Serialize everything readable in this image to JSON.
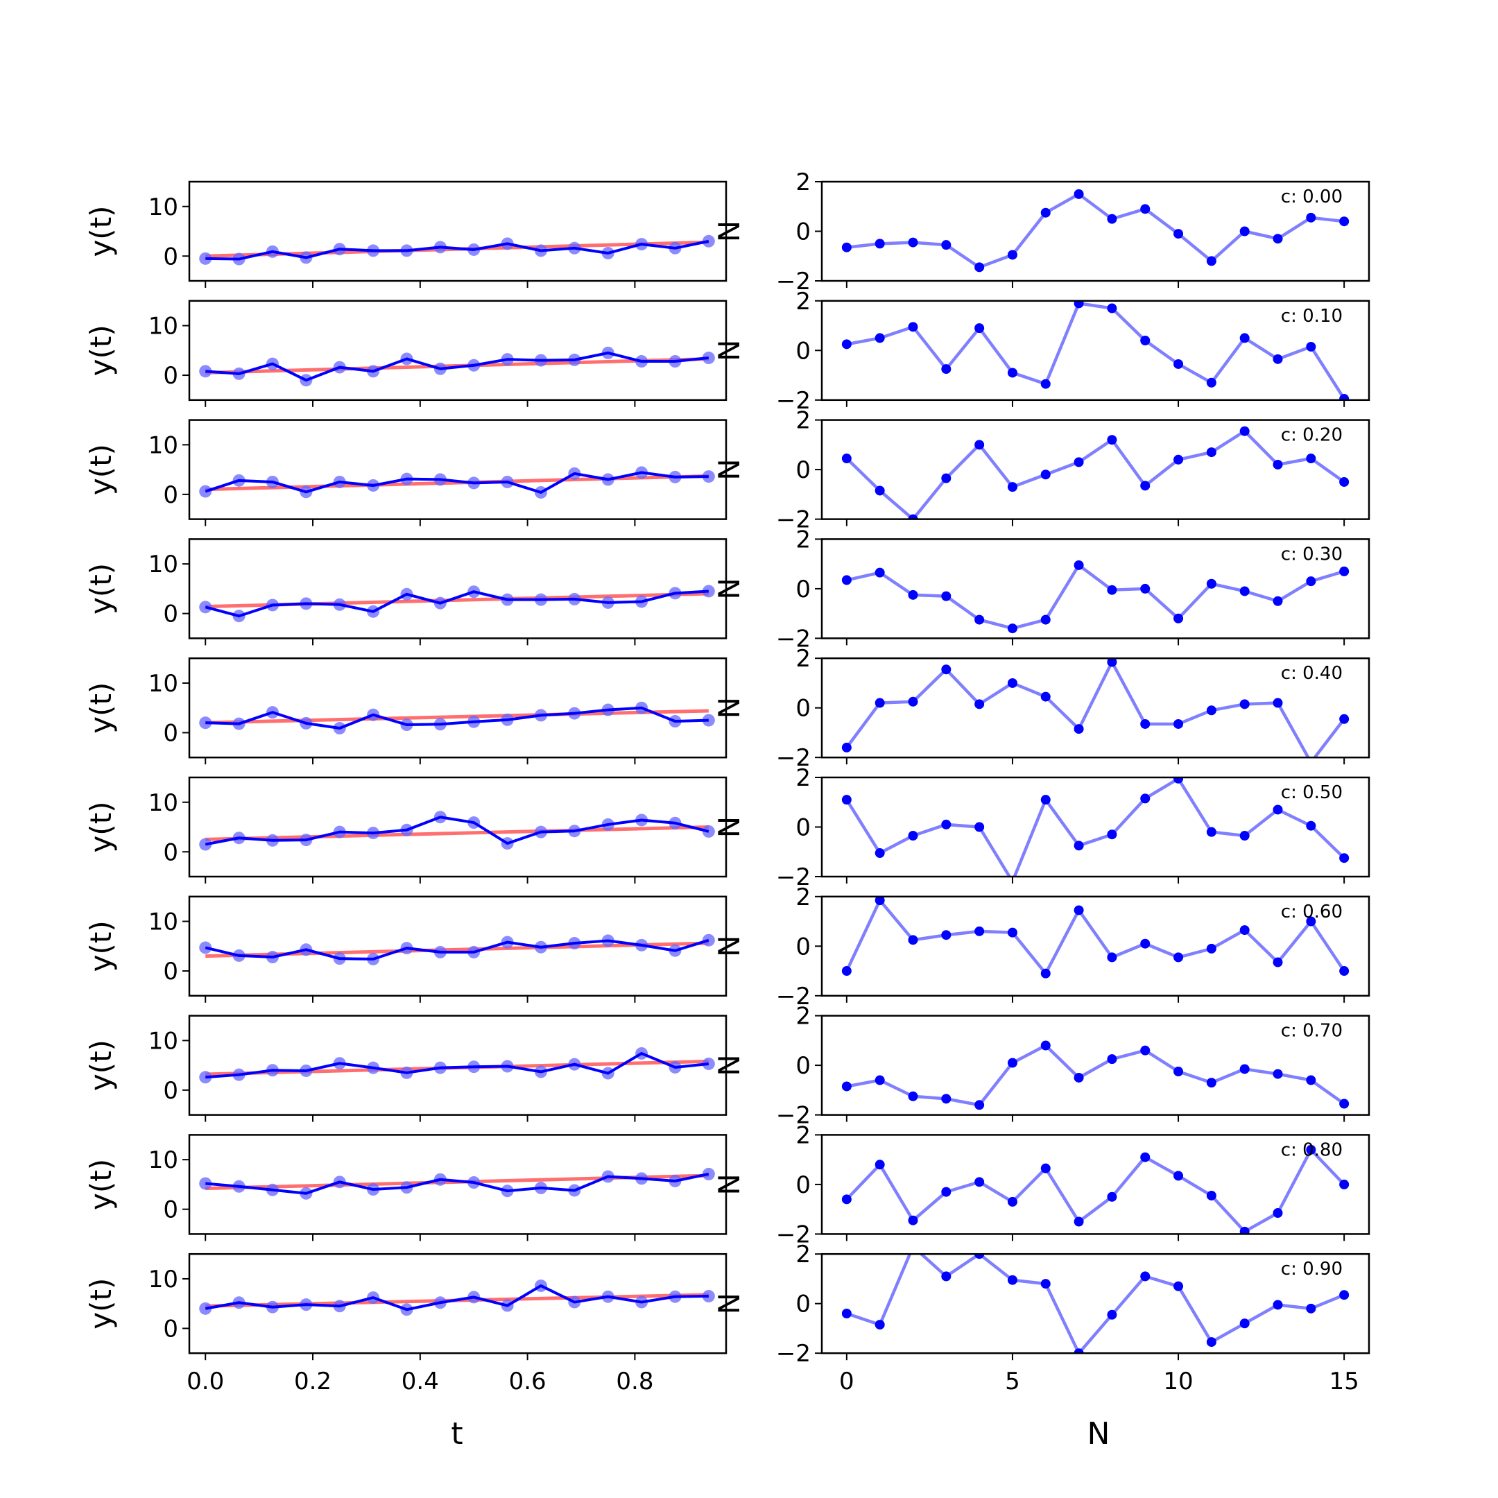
{
  "chart_data": {
    "type": "line",
    "layout": "10 rows x 2 columns of subplots",
    "colors": {
      "observed": "#0000ff",
      "observed_marker": "#6464ff",
      "trend": "#ff6f6f",
      "noise": "#7f7fff",
      "noise_marker": "#0000ff"
    },
    "left_column": {
      "xlabel": "t",
      "ylabel": "y(t)",
      "xlim": [
        -0.03,
        0.97
      ],
      "ylim": [
        -5,
        15
      ],
      "xticks": [
        0.0,
        0.2,
        0.4,
        0.6,
        0.8
      ],
      "xtick_labels": [
        "0.0",
        "0.2",
        "0.4",
        "0.6",
        "0.8"
      ],
      "yticks": [
        0,
        10
      ],
      "ytick_labels": [
        "0",
        "10"
      ],
      "x": [
        0.0,
        0.0625,
        0.125,
        0.1875,
        0.25,
        0.3125,
        0.375,
        0.4375,
        0.5,
        0.5625,
        0.625,
        0.6875,
        0.75,
        0.8125,
        0.875,
        0.9375
      ]
    },
    "right_column": {
      "xlabel": "N",
      "ylabel": "N",
      "xlim": [
        -0.75,
        15.75
      ],
      "ylim": [
        -2,
        2
      ],
      "xticks": [
        0,
        5,
        10,
        15
      ],
      "xtick_labels": [
        "0",
        "5",
        "10",
        "15"
      ],
      "yticks": [
        -2,
        0,
        2
      ],
      "ytick_labels": [
        "−2",
        "0",
        "2"
      ],
      "x": [
        0,
        1,
        2,
        3,
        4,
        5,
        6,
        7,
        8,
        9,
        10,
        11,
        12,
        13,
        14,
        15
      ]
    },
    "rows": [
      {
        "annotation": "c: 0.00",
        "observed": [
          -0.5,
          -0.6,
          0.9,
          -0.3,
          1.4,
          1.1,
          1.1,
          1.8,
          1.3,
          2.5,
          1.1,
          1.6,
          0.6,
          2.4,
          1.6,
          3.0
        ],
        "trend": [
          0.0,
          2.8
        ],
        "noise": [
          -0.65,
          -0.5,
          -0.45,
          -0.55,
          -1.45,
          -0.95,
          0.75,
          1.5,
          0.5,
          0.9,
          -0.1,
          -1.2,
          0.0,
          -0.3,
          0.55,
          0.4
        ]
      },
      {
        "annotation": "c: 0.10",
        "observed": [
          0.8,
          0.3,
          2.3,
          -1.0,
          1.6,
          0.8,
          3.3,
          1.3,
          2.0,
          3.2,
          3.0,
          3.1,
          4.5,
          2.8,
          2.8,
          3.5
        ],
        "trend": [
          0.5,
          3.3
        ],
        "noise": [
          0.25,
          0.5,
          0.95,
          -0.75,
          0.9,
          -0.9,
          -1.35,
          1.9,
          1.7,
          0.4,
          -0.55,
          -1.3,
          0.5,
          -0.35,
          0.15,
          -1.95
        ]
      },
      {
        "annotation": "c: 0.20",
        "observed": [
          0.6,
          2.8,
          2.5,
          0.5,
          2.5,
          1.8,
          3.1,
          3.0,
          2.3,
          2.5,
          0.4,
          4.2,
          3.0,
          4.4,
          3.5,
          3.6
        ],
        "trend": [
          1.0,
          3.7
        ],
        "noise": [
          0.45,
          -0.85,
          -2.0,
          -0.35,
          1.0,
          -0.7,
          -0.2,
          0.3,
          1.2,
          -0.65,
          0.4,
          0.7,
          1.55,
          0.2,
          0.45,
          -0.5
        ]
      },
      {
        "annotation": "c: 0.30",
        "observed": [
          1.3,
          -0.5,
          1.7,
          2.0,
          1.8,
          0.4,
          3.9,
          2.1,
          4.4,
          2.8,
          2.8,
          2.9,
          2.2,
          2.4,
          4.1,
          4.5
        ],
        "trend": [
          1.4,
          4.0
        ],
        "noise": [
          0.35,
          0.65,
          -0.25,
          -0.3,
          -1.25,
          -1.6,
          -1.25,
          0.95,
          -0.05,
          0.0,
          -1.2,
          0.2,
          -0.1,
          -0.5,
          0.3,
          0.7
        ]
      },
      {
        "annotation": "c: 0.40",
        "observed": [
          2.0,
          1.8,
          4.1,
          1.9,
          0.9,
          3.6,
          1.6,
          1.7,
          2.2,
          2.6,
          3.5,
          3.9,
          4.6,
          5.0,
          2.3,
          2.5
        ],
        "trend": [
          2.0,
          4.4
        ],
        "noise": [
          -1.6,
          0.2,
          0.25,
          1.55,
          0.15,
          1.0,
          0.45,
          -0.85,
          1.85,
          -0.65,
          -0.65,
          -0.1,
          0.15,
          0.2,
          -2.2,
          -0.45
        ]
      },
      {
        "annotation": "c: 0.50",
        "observed": [
          1.5,
          2.8,
          2.3,
          2.4,
          4.0,
          3.8,
          4.4,
          7.0,
          5.9,
          1.7,
          4.0,
          4.2,
          5.5,
          6.4,
          5.8,
          4.1
        ],
        "trend": [
          2.5,
          5.0
        ],
        "noise": [
          1.1,
          -1.05,
          -0.35,
          0.1,
          0.0,
          -2.2,
          1.1,
          -0.75,
          -0.3,
          1.15,
          1.95,
          -0.2,
          -0.35,
          0.7,
          0.05,
          -1.25
        ]
      },
      {
        "annotation": "c: 0.60",
        "observed": [
          4.7,
          3.1,
          2.8,
          4.3,
          2.5,
          2.4,
          4.6,
          3.8,
          3.8,
          5.8,
          4.8,
          5.6,
          6.1,
          5.2,
          4.1,
          6.2
        ],
        "trend": [
          3.0,
          5.6
        ],
        "noise": [
          -1.0,
          1.85,
          0.25,
          0.45,
          0.6,
          0.55,
          -1.1,
          1.45,
          -0.45,
          0.1,
          -0.45,
          -0.1,
          0.65,
          -0.65,
          1.0,
          -1.0
        ]
      },
      {
        "annotation": "c: 0.70",
        "observed": [
          2.6,
          3.1,
          4.0,
          3.9,
          5.4,
          4.5,
          3.5,
          4.5,
          4.7,
          4.8,
          3.7,
          5.2,
          3.4,
          7.4,
          4.6,
          5.3
        ],
        "trend": [
          3.2,
          5.8
        ],
        "noise": [
          -0.85,
          -0.6,
          -1.25,
          -1.35,
          -1.6,
          0.1,
          0.8,
          -0.5,
          0.25,
          0.6,
          -0.25,
          -0.7,
          -0.15,
          -0.35,
          -0.6,
          -1.55
        ]
      },
      {
        "annotation": "c: 0.80",
        "observed": [
          5.2,
          4.6,
          3.9,
          3.2,
          5.5,
          4.0,
          4.4,
          6.0,
          5.4,
          3.7,
          4.3,
          3.8,
          6.6,
          6.2,
          5.7,
          7.1
        ],
        "trend": [
          4.2,
          6.8
        ],
        "noise": [
          -0.6,
          0.8,
          -1.45,
          -0.3,
          0.1,
          -0.7,
          0.65,
          -1.5,
          -0.5,
          1.1,
          0.35,
          -0.45,
          -1.9,
          -1.15,
          1.4,
          0.0
        ]
      },
      {
        "annotation": "c: 0.90",
        "observed": [
          4.0,
          5.2,
          4.3,
          4.8,
          4.5,
          6.2,
          3.8,
          5.2,
          6.3,
          4.6,
          8.6,
          5.3,
          6.4,
          5.3,
          6.4,
          6.5
        ],
        "trend": [
          4.5,
          6.8
        ],
        "noise": [
          -0.4,
          -0.85,
          2.3,
          1.1,
          2.0,
          0.95,
          0.8,
          -2.0,
          -0.45,
          1.1,
          0.7,
          -1.55,
          -0.8,
          -0.05,
          -0.2,
          0.35
        ]
      }
    ]
  }
}
